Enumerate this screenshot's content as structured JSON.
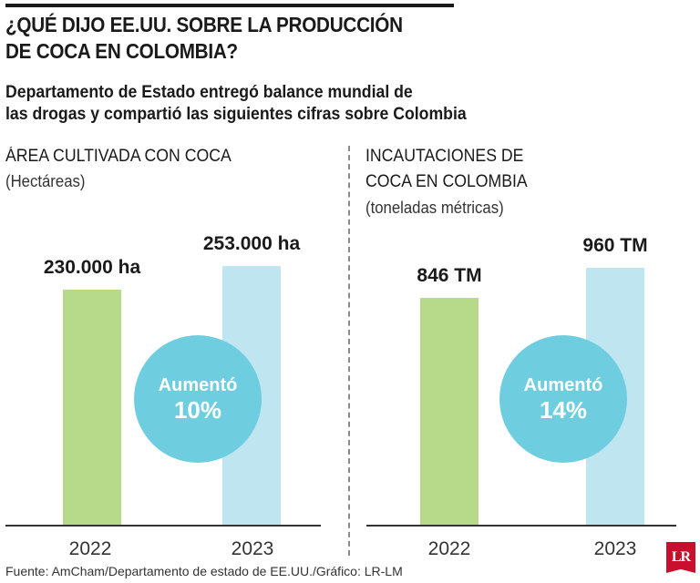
{
  "title_lines": [
    "¿QUÉ DIJO EE.UU. SOBRE LA PRODUCCIÓN",
    "DE COCA EN COLOMBIA?"
  ],
  "subtitle_lines": [
    "Departamento de Estado entregó balance mundial de",
    "las drogas y compartió las siguientes cifras sobre Colombia"
  ],
  "source": "Fuente: AmCham/Departamento de estado de EE.UU./Gráfico: LR-LM",
  "logo_text": "LR",
  "colors": {
    "bar_2022": "#b6d98a",
    "bar_2023": "#bfe5f1",
    "circle": "#6fcde0",
    "logo": "#c8102e"
  },
  "chart_data": [
    {
      "type": "bar",
      "title_lines": [
        "ÁREA CULTIVADA CON COCA"
      ],
      "unit": "(Hectáreas)",
      "categories": [
        "2022",
        "2023"
      ],
      "values": [
        230000,
        253000
      ],
      "value_labels": [
        "230.000 ha",
        "253.000 ha"
      ],
      "change_label": "Aumentó",
      "change_value": "10%"
    },
    {
      "type": "bar",
      "title_lines": [
        "INCAUTACIONES DE",
        "COCA EN COLOMBIA"
      ],
      "unit": "(toneladas métricas)",
      "categories": [
        "2022",
        "2023"
      ],
      "values": [
        846,
        960
      ],
      "value_labels": [
        "846 TM",
        "960 TM"
      ],
      "change_label": "Aumentó",
      "change_value": "14%"
    }
  ]
}
